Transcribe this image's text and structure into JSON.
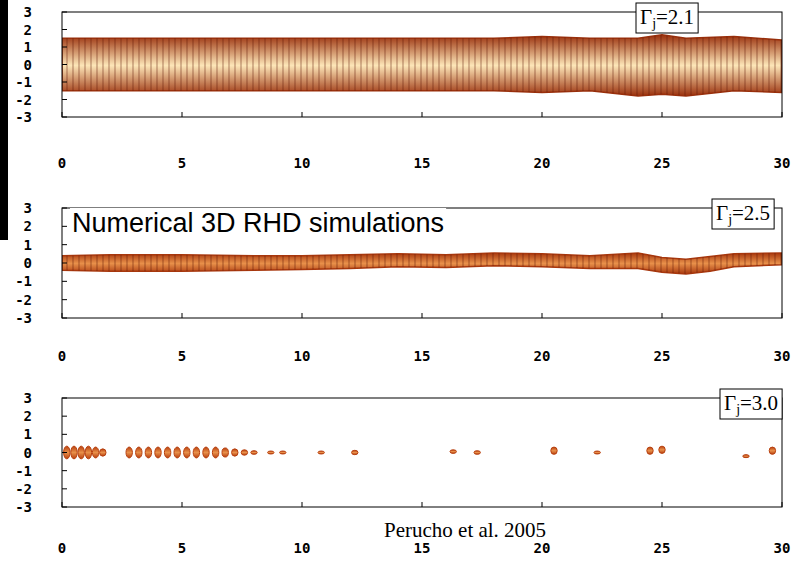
{
  "chart_data": [
    {
      "type": "area",
      "title": "Γj=2.1",
      "color": "#9a300c",
      "x": [
        0,
        5,
        10,
        15,
        18,
        20,
        22,
        24,
        25,
        26,
        28,
        30
      ],
      "upper": [
        1.5,
        1.5,
        1.5,
        1.5,
        1.5,
        1.6,
        1.5,
        1.5,
        1.7,
        1.5,
        1.6,
        1.4
      ],
      "lower": [
        -1.5,
        -1.5,
        -1.5,
        -1.5,
        -1.5,
        -1.6,
        -1.5,
        -1.8,
        -1.7,
        -1.8,
        -1.5,
        -1.6
      ],
      "xlim": [
        0,
        30
      ],
      "ylim": [
        -3,
        3
      ],
      "xticks": [
        0,
        5,
        10,
        15,
        20,
        25,
        30
      ],
      "yticks": [
        -3,
        -2,
        -1,
        0,
        1,
        2,
        3
      ]
    },
    {
      "type": "area",
      "title": "Γj=2.5",
      "color": "#a8380e",
      "annotation": "Numerical 3D RHD simulations",
      "x": [
        0,
        2,
        5,
        8,
        10,
        12,
        14,
        16,
        18,
        20,
        22,
        24,
        25,
        26,
        27,
        28,
        30
      ],
      "upper": [
        0.4,
        0.45,
        0.45,
        0.4,
        0.4,
        0.45,
        0.5,
        0.45,
        0.55,
        0.5,
        0.4,
        0.55,
        0.3,
        0.2,
        0.35,
        0.5,
        0.55
      ],
      "lower": [
        -0.4,
        -0.45,
        -0.45,
        -0.4,
        -0.35,
        -0.3,
        -0.2,
        -0.25,
        -0.15,
        -0.2,
        -0.3,
        -0.3,
        -0.5,
        -0.6,
        -0.45,
        -0.2,
        -0.1
      ],
      "xlim": [
        0,
        30
      ],
      "ylim": [
        -3,
        3
      ],
      "xticks": [
        0,
        5,
        10,
        15,
        20,
        25,
        30
      ],
      "yticks": [
        -3,
        -2,
        -1,
        0,
        1,
        2,
        3
      ]
    },
    {
      "type": "scatter",
      "title": "Γj=3.0",
      "color": "#b8400f",
      "annotation": "Perucho et al. 2005",
      "x": [
        0.2,
        0.5,
        0.8,
        1.1,
        1.4,
        1.7,
        2.8,
        3.2,
        3.6,
        4.0,
        4.4,
        4.8,
        5.2,
        5.6,
        6.0,
        6.4,
        6.8,
        7.2,
        7.6,
        8.0,
        8.7,
        9.2,
        10.8,
        12.2,
        16.3,
        17.3,
        20.5,
        22.3,
        24.5,
        25.0,
        28.5,
        29.6
      ],
      "values": [
        0,
        0,
        0,
        0,
        0,
        0,
        0,
        0,
        0,
        0,
        0,
        0,
        0,
        0,
        0,
        0,
        0,
        0,
        0,
        0,
        0,
        0,
        0,
        0,
        0.05,
        0,
        0.1,
        0,
        0.1,
        0.15,
        -0.2,
        0.1
      ],
      "sizes": [
        0.35,
        0.35,
        0.35,
        0.35,
        0.3,
        0.2,
        0.3,
        0.3,
        0.3,
        0.3,
        0.3,
        0.3,
        0.3,
        0.3,
        0.3,
        0.3,
        0.25,
        0.2,
        0.15,
        0.1,
        0.08,
        0.06,
        0.04,
        0.12,
        0.1,
        0.1,
        0.2,
        0.03,
        0.2,
        0.2,
        0.08,
        0.2
      ],
      "xlim": [
        0,
        30
      ],
      "ylim": [
        -3,
        3
      ],
      "xticks": [
        0,
        5,
        10,
        15,
        20,
        25,
        30
      ],
      "yticks": [
        -3,
        -2,
        -1,
        0,
        1,
        2,
        3
      ]
    }
  ]
}
